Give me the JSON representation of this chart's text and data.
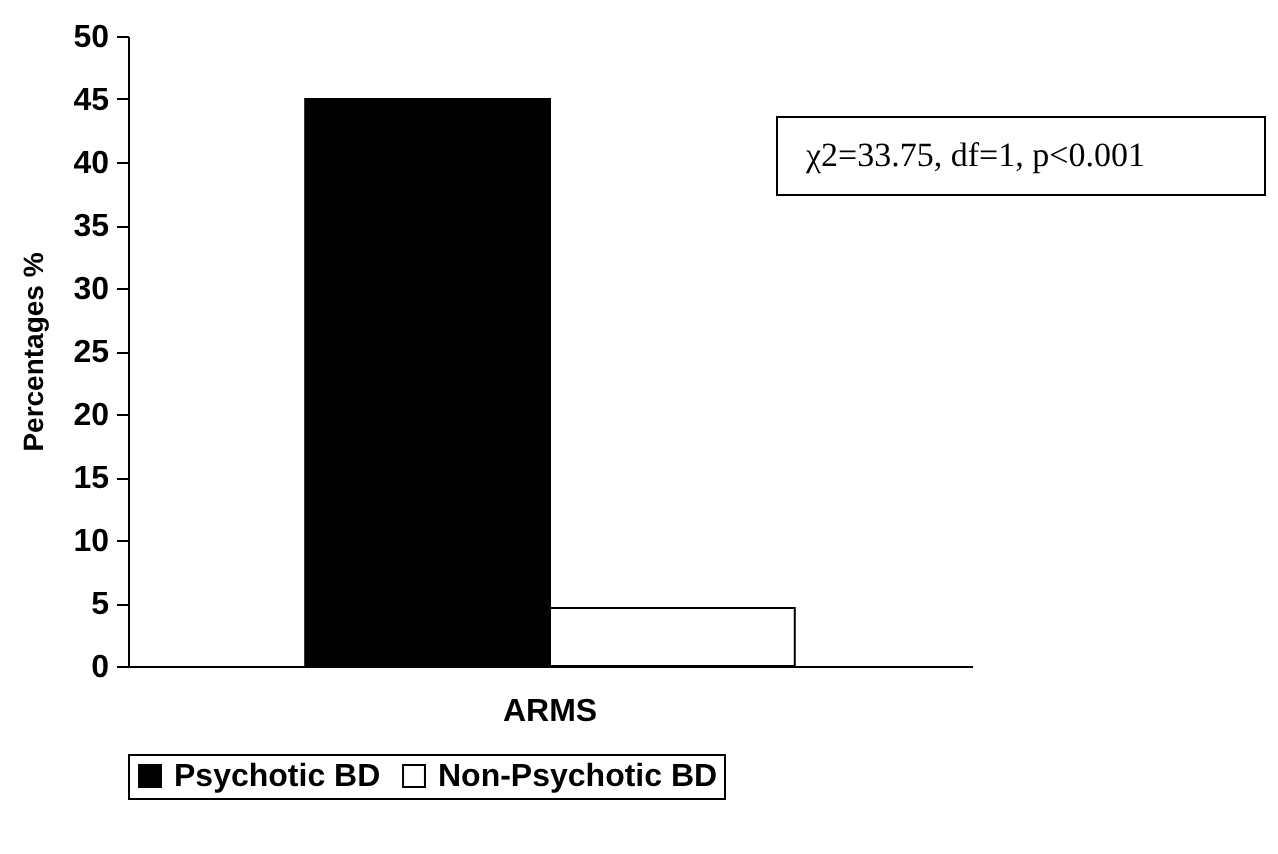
{
  "chart_data": {
    "type": "bar",
    "categories": [
      "ARMS"
    ],
    "ylabel": "Percentages %",
    "series": [
      {
        "name": "Psychotic BD",
        "color": "#000000",
        "values": [
          45
        ]
      },
      {
        "name": "Non-Psychotic BD",
        "color": "#ffffff",
        "values": [
          4.6
        ]
      }
    ],
    "ylim": [
      0,
      50
    ],
    "yticks": [
      0,
      5,
      10,
      15,
      20,
      25,
      30,
      35,
      40,
      45,
      50
    ],
    "grid": false,
    "legend": "bottom",
    "annotations": [
      "χ2=33.75, df=1, p<0.001"
    ]
  }
}
